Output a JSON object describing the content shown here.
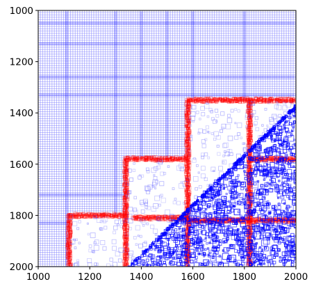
{
  "chart_data": {
    "type": "scatter",
    "title": "",
    "xlabel": "",
    "ylabel": "",
    "xlim": [
      1000,
      2000
    ],
    "ylim": [
      2000,
      1000
    ],
    "y_inverted": true,
    "x_ticks": [
      "1000",
      "1200",
      "1400",
      "1600",
      "1800",
      "2000"
    ],
    "y_ticks": [
      "1000",
      "1200",
      "1400",
      "1600",
      "1800",
      "2000"
    ],
    "grid": false,
    "legend": "none",
    "marker": "square (unfilled, semi-transparent)",
    "colors": {
      "background_field": "#0000ff",
      "triangle_boundary": "#ff0000",
      "matrix_region": "#0000ff",
      "light_squares": "#4040ff"
    },
    "regions": [
      {
        "name": "",
        "description": "dense uniform blue grid of small squares covering the upper-left area above the staircase",
        "x": [
          1000,
          2000
        ],
        "y": [
          1000,
          1360
        ]
      },
      {
        "name": "",
        "description": "red staircase boundary formed by tiles",
        "steps": [
          {
            "x": [
              1120,
              1340
            ],
            "y": [
              1800,
              2000
            ]
          },
          {
            "x": [
              1340,
              1580
            ],
            "y": [
              1580,
              2000
            ]
          },
          {
            "x": [
              1580,
              2000
            ],
            "y": [
              1350,
              2000
            ]
          }
        ]
      },
      {
        "name": "",
        "description": "dense blue squares below the diagonal",
        "diagonal": {
          "from": [
            1350,
            2000
          ],
          "to": [
            2000,
            1370
          ]
        }
      }
    ]
  }
}
